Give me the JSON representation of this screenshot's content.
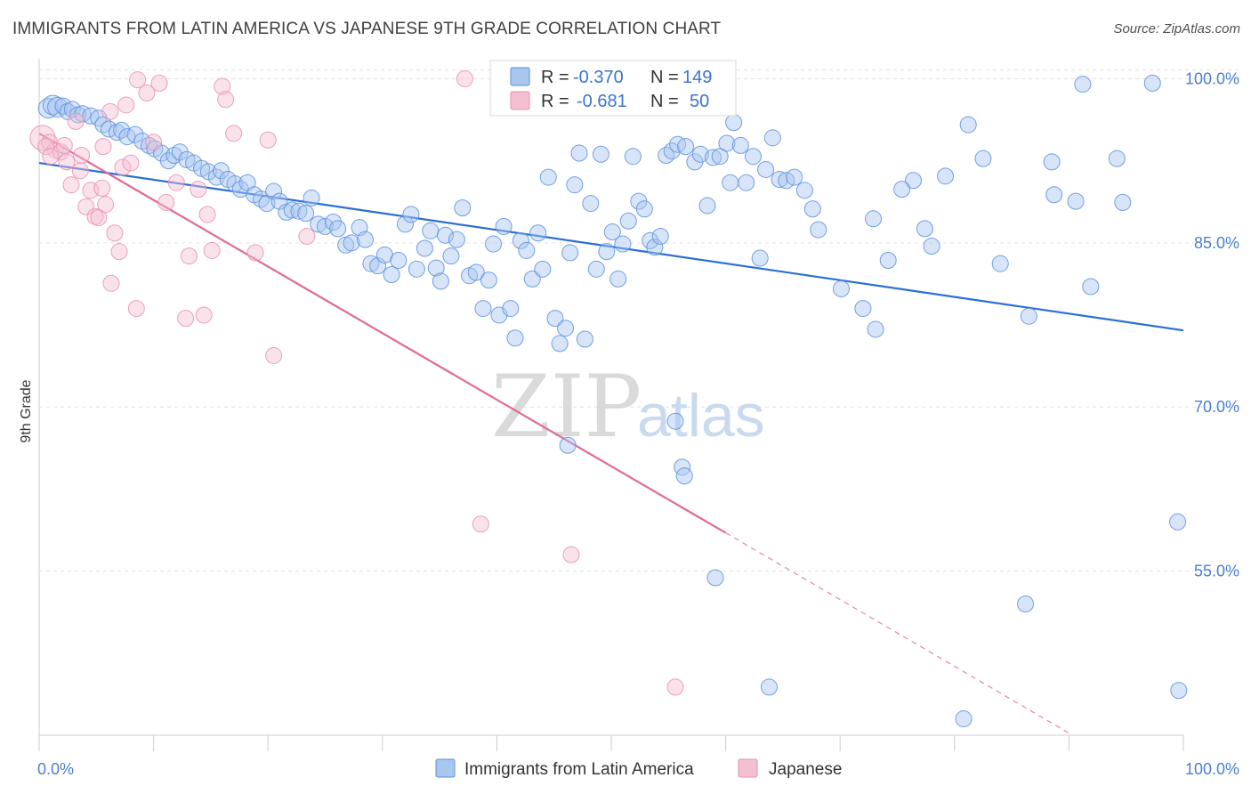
{
  "title": "IMMIGRANTS FROM LATIN AMERICA VS JAPANESE 9TH GRADE CORRELATION CHART",
  "source": "Source: ZipAtlas.com",
  "watermark": {
    "zip": "ZIP",
    "atlas": "atlas"
  },
  "colors": {
    "blue": "#5b8fe0",
    "blue_fill": "#a9c6ef",
    "blue_line": "#2a6fd3",
    "pink": "#e891b0",
    "pink_fill": "#f5bfd2",
    "pink_line": "#e06a94",
    "grid": "#e4e4e4",
    "tick_text": "#4a7fd0"
  },
  "legend": {
    "rows": [
      {
        "r_label": "R =",
        "r_value": "-0.370",
        "n_label": "N =",
        "n_value": "149"
      },
      {
        "r_label": "R =",
        "r_value": "-0.681",
        "n_label": "N =",
        "n_value": "50"
      }
    ]
  },
  "chart_data": {
    "type": "scatter",
    "xlabel": "",
    "ylabel": "9th Grade",
    "xlim": [
      0,
      100
    ],
    "ylim": [
      40,
      101.5
    ],
    "x_tick_labels": [
      "0.0%",
      "100.0%"
    ],
    "y_ticks": [
      55,
      70,
      85,
      100
    ],
    "y_tick_labels": [
      "55.0%",
      "70.0%",
      "85.0%",
      "100.0%"
    ],
    "grid": true,
    "series": [
      {
        "name": "Immigrants from Latin America",
        "color": "blue",
        "trend": {
          "x": [
            0,
            100
          ],
          "y": [
            92.3,
            77.0
          ],
          "dashed_from": null
        },
        "points": [
          [
            0.8,
            97.3
          ],
          [
            1.2,
            97.6
          ],
          [
            1.6,
            97.4
          ],
          [
            2.1,
            97.5
          ],
          [
            2.5,
            97.0
          ],
          [
            2.9,
            97.2
          ],
          [
            3.4,
            96.7
          ],
          [
            3.8,
            96.8
          ],
          [
            4.5,
            96.6
          ],
          [
            5.2,
            96.4
          ],
          [
            5.6,
            95.8
          ],
          [
            6.1,
            95.4
          ],
          [
            6.8,
            95.1
          ],
          [
            7.2,
            95.3
          ],
          [
            7.7,
            94.7
          ],
          [
            8.4,
            94.9
          ],
          [
            9.0,
            94.3
          ],
          [
            9.6,
            93.9
          ],
          [
            10.1,
            93.6
          ],
          [
            10.7,
            93.2
          ],
          [
            11.3,
            92.5
          ],
          [
            11.8,
            93.0
          ],
          [
            12.3,
            93.3
          ],
          [
            12.9,
            92.6
          ],
          [
            13.5,
            92.3
          ],
          [
            14.2,
            91.8
          ],
          [
            14.8,
            91.5
          ],
          [
            15.5,
            91.0
          ],
          [
            15.9,
            91.6
          ],
          [
            16.5,
            90.8
          ],
          [
            17.1,
            90.4
          ],
          [
            17.6,
            89.9
          ],
          [
            18.2,
            90.5
          ],
          [
            18.8,
            89.4
          ],
          [
            19.4,
            89.0
          ],
          [
            19.9,
            88.6
          ],
          [
            20.5,
            89.7
          ],
          [
            21.0,
            88.8
          ],
          [
            21.6,
            87.8
          ],
          [
            22.1,
            88.0
          ],
          [
            22.7,
            87.9
          ],
          [
            23.3,
            87.7
          ],
          [
            23.8,
            89.1
          ],
          [
            24.4,
            86.7
          ],
          [
            25.0,
            86.5
          ],
          [
            25.7,
            86.9
          ],
          [
            26.1,
            86.3
          ],
          [
            26.8,
            84.8
          ],
          [
            27.3,
            85.0
          ],
          [
            28.0,
            86.4
          ],
          [
            28.5,
            85.3
          ],
          [
            29.0,
            83.1
          ],
          [
            29.6,
            82.9
          ],
          [
            30.2,
            83.9
          ],
          [
            30.8,
            82.1
          ],
          [
            31.4,
            83.4
          ],
          [
            32.0,
            86.7
          ],
          [
            32.5,
            87.6
          ],
          [
            33.0,
            82.6
          ],
          [
            33.7,
            84.5
          ],
          [
            34.2,
            86.1
          ],
          [
            34.7,
            82.7
          ],
          [
            35.1,
            81.5
          ],
          [
            35.5,
            85.7
          ],
          [
            36.0,
            83.8
          ],
          [
            36.5,
            85.3
          ],
          [
            37.0,
            88.2
          ],
          [
            37.6,
            82.0
          ],
          [
            38.2,
            82.3
          ],
          [
            38.8,
            79.0
          ],
          [
            39.3,
            81.6
          ],
          [
            39.7,
            84.9
          ],
          [
            40.2,
            78.4
          ],
          [
            40.6,
            86.5
          ],
          [
            41.2,
            79.0
          ],
          [
            41.6,
            76.3
          ],
          [
            42.1,
            85.2
          ],
          [
            42.6,
            84.3
          ],
          [
            43.1,
            81.7
          ],
          [
            43.6,
            85.9
          ],
          [
            44.0,
            82.6
          ],
          [
            44.5,
            91.0
          ],
          [
            45.1,
            78.1
          ],
          [
            45.5,
            75.8
          ],
          [
            46.0,
            77.2
          ],
          [
            46.4,
            84.1
          ],
          [
            46.8,
            90.3
          ],
          [
            47.2,
            93.2
          ],
          [
            47.7,
            76.2
          ],
          [
            48.2,
            88.6
          ],
          [
            48.7,
            82.6
          ],
          [
            49.1,
            93.1
          ],
          [
            49.6,
            84.2
          ],
          [
            50.1,
            86.0
          ],
          [
            50.6,
            81.7
          ],
          [
            51.0,
            84.9
          ],
          [
            51.5,
            87.0
          ],
          [
            51.9,
            92.9
          ],
          [
            52.4,
            88.8
          ],
          [
            52.9,
            88.1
          ],
          [
            53.4,
            85.2
          ],
          [
            53.8,
            84.6
          ],
          [
            54.3,
            85.6
          ],
          [
            54.8,
            93.0
          ],
          [
            55.3,
            93.4
          ],
          [
            55.8,
            94.0
          ],
          [
            56.5,
            93.8
          ],
          [
            57.3,
            92.4
          ],
          [
            57.8,
            93.1
          ],
          [
            58.4,
            88.4
          ],
          [
            58.9,
            92.8
          ],
          [
            59.5,
            92.9
          ],
          [
            60.1,
            94.1
          ],
          [
            60.7,
            96.0
          ],
          [
            61.3,
            93.9
          ],
          [
            61.8,
            90.5
          ],
          [
            62.4,
            92.9
          ],
          [
            63.0,
            83.6
          ],
          [
            63.5,
            91.7
          ],
          [
            64.1,
            94.6
          ],
          [
            64.7,
            90.8
          ],
          [
            65.3,
            90.7
          ],
          [
            66.0,
            91.0
          ],
          [
            66.9,
            89.8
          ],
          [
            67.6,
            88.1
          ],
          [
            68.1,
            86.2
          ],
          [
            70.1,
            80.8
          ],
          [
            72.0,
            79.0
          ],
          [
            73.1,
            77.1
          ],
          [
            74.2,
            83.4
          ],
          [
            55.6,
            68.7
          ],
          [
            56.2,
            64.5
          ],
          [
            56.4,
            63.7
          ],
          [
            86.2,
            52.0
          ],
          [
            99.5,
            59.5
          ],
          [
            46.2,
            66.5
          ],
          [
            63.8,
            44.4
          ],
          [
            91.2,
            99.5
          ],
          [
            97.3,
            99.6
          ],
          [
            99.6,
            44.1
          ],
          [
            59.1,
            54.4
          ],
          [
            80.8,
            41.5
          ],
          [
            84.0,
            83.1
          ],
          [
            86.5,
            78.3
          ],
          [
            91.9,
            81.0
          ],
          [
            94.2,
            92.7
          ],
          [
            94.7,
            88.7
          ],
          [
            88.7,
            89.4
          ],
          [
            90.6,
            88.8
          ],
          [
            88.5,
            92.4
          ],
          [
            79.2,
            91.1
          ],
          [
            81.2,
            95.8
          ],
          [
            76.4,
            90.7
          ],
          [
            77.4,
            86.3
          ],
          [
            78.0,
            84.7
          ],
          [
            72.9,
            87.2
          ],
          [
            75.4,
            89.9
          ],
          [
            82.5,
            92.7
          ],
          [
            60.4,
            90.5
          ]
        ]
      },
      {
        "name": "Japanese",
        "color": "pink",
        "trend": {
          "x": [
            0,
            60.0
          ],
          "y": [
            95.0,
            58.5
          ],
          "dashed_to": [
            90.0,
            40.2
          ]
        },
        "points": [
          [
            0.3,
            94.6
          ],
          [
            0.9,
            94.2
          ],
          [
            1.4,
            93.5
          ],
          [
            1.9,
            93.3
          ],
          [
            2.4,
            92.4
          ],
          [
            2.8,
            90.3
          ],
          [
            3.2,
            96.1
          ],
          [
            3.6,
            91.6
          ],
          [
            4.1,
            88.3
          ],
          [
            4.5,
            89.8
          ],
          [
            4.9,
            87.4
          ],
          [
            5.2,
            87.3
          ],
          [
            5.5,
            90.0
          ],
          [
            5.8,
            88.5
          ],
          [
            6.2,
            97.0
          ],
          [
            6.6,
            85.9
          ],
          [
            7.0,
            84.2
          ],
          [
            6.3,
            81.3
          ],
          [
            7.3,
            91.9
          ],
          [
            8.0,
            92.3
          ],
          [
            7.6,
            97.6
          ],
          [
            8.6,
            99.9
          ],
          [
            9.4,
            98.7
          ],
          [
            10.0,
            94.2
          ],
          [
            10.5,
            99.6
          ],
          [
            11.1,
            88.7
          ],
          [
            12.0,
            90.5
          ],
          [
            12.8,
            78.1
          ],
          [
            13.1,
            83.8
          ],
          [
            13.9,
            89.9
          ],
          [
            14.4,
            78.4
          ],
          [
            14.7,
            87.6
          ],
          [
            15.1,
            84.3
          ],
          [
            16.0,
            99.3
          ],
          [
            16.3,
            98.1
          ],
          [
            17.0,
            95.0
          ],
          [
            18.9,
            84.1
          ],
          [
            20.0,
            94.4
          ],
          [
            20.5,
            74.7
          ],
          [
            23.4,
            85.6
          ],
          [
            37.2,
            100.0
          ],
          [
            38.6,
            59.3
          ],
          [
            46.5,
            56.5
          ],
          [
            55.6,
            44.4
          ],
          [
            0.6,
            93.8
          ],
          [
            2.2,
            93.9
          ],
          [
            1.0,
            92.9
          ],
          [
            3.7,
            93.0
          ],
          [
            8.5,
            79.0
          ],
          [
            5.6,
            93.8
          ]
        ]
      }
    ]
  },
  "bottom_legend": [
    {
      "label": "Immigrants from Latin America",
      "color": "blue"
    },
    {
      "label": "Japanese",
      "color": "pink"
    }
  ]
}
